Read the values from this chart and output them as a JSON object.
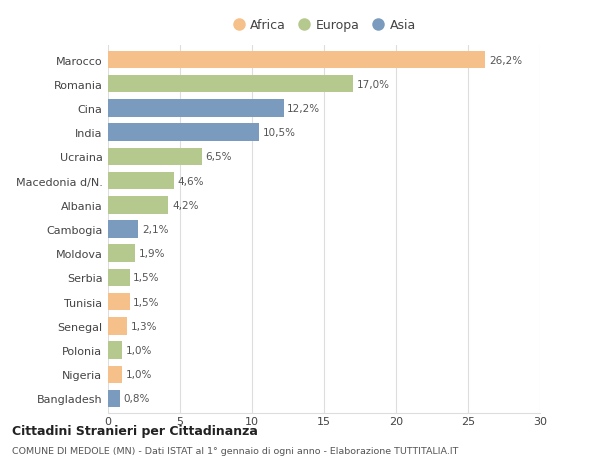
{
  "countries": [
    "Marocco",
    "Romania",
    "Cina",
    "India",
    "Ucraina",
    "Macedonia d/N.",
    "Albania",
    "Cambogia",
    "Moldova",
    "Serbia",
    "Tunisia",
    "Senegal",
    "Polonia",
    "Nigeria",
    "Bangladesh"
  ],
  "values": [
    26.2,
    17.0,
    12.2,
    10.5,
    6.5,
    4.6,
    4.2,
    2.1,
    1.9,
    1.5,
    1.5,
    1.3,
    1.0,
    1.0,
    0.8
  ],
  "labels": [
    "26,2%",
    "17,0%",
    "12,2%",
    "10,5%",
    "6,5%",
    "4,6%",
    "4,2%",
    "2,1%",
    "1,9%",
    "1,5%",
    "1,5%",
    "1,3%",
    "1,0%",
    "1,0%",
    "0,8%"
  ],
  "continents": [
    "Africa",
    "Europa",
    "Asia",
    "Asia",
    "Europa",
    "Europa",
    "Europa",
    "Asia",
    "Europa",
    "Europa",
    "Africa",
    "Africa",
    "Europa",
    "Africa",
    "Asia"
  ],
  "colors": {
    "Africa": "#F5C089",
    "Europa": "#B5C98E",
    "Asia": "#7A9BBD"
  },
  "xlim": [
    0,
    30
  ],
  "xticks": [
    0,
    5,
    10,
    15,
    20,
    25,
    30
  ],
  "title": "Cittadini Stranieri per Cittadinanza",
  "subtitle": "COMUNE DI MEDOLE (MN) - Dati ISTAT al 1° gennaio di ogni anno - Elaborazione TUTTITALIA.IT",
  "bg_color": "#FFFFFF",
  "grid_color": "#DDDDDD",
  "bar_height": 0.72
}
